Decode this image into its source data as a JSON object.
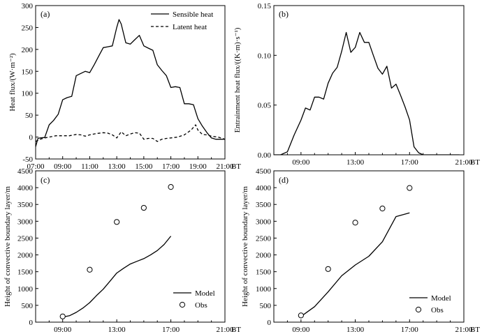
{
  "figure_unit": "BT",
  "chart_data": [
    {
      "panel": "(a)",
      "type": "line",
      "xlabel": "",
      "ylabel": "Heat flux/(W·m⁻²)",
      "xlim": [
        7,
        21
      ],
      "ylim": [
        -50,
        300
      ],
      "xticks": [
        "07:00",
        "09:00",
        "11:00",
        "13:00",
        "15:00",
        "17:00",
        "19:00",
        "21:00"
      ],
      "yticks": [
        "-50",
        "0",
        "50",
        "100",
        "150",
        "200",
        "250",
        "300"
      ],
      "legend_position": "top-right",
      "series": [
        {
          "name": "Sensible heat",
          "style": "solid",
          "x": [
            7.0,
            7.17,
            7.33,
            7.67,
            8.0,
            8.33,
            8.67,
            9.0,
            9.33,
            9.67,
            10.0,
            10.33,
            10.67,
            11.0,
            11.33,
            11.67,
            12.0,
            12.33,
            12.67,
            13.0,
            13.17,
            13.33,
            13.67,
            14.0,
            14.33,
            14.67,
            15.0,
            15.33,
            15.67,
            16.0,
            16.33,
            16.67,
            17.0,
            17.33,
            17.67,
            18.0,
            18.33,
            18.67,
            19.0,
            19.33,
            19.67,
            20.0,
            20.33,
            20.67,
            21.0
          ],
          "y": [
            -22,
            -3,
            -2,
            -1,
            28,
            38,
            52,
            85,
            90,
            93,
            140,
            145,
            150,
            147,
            165,
            185,
            204,
            206,
            208,
            250,
            268,
            258,
            215,
            212,
            222,
            232,
            208,
            203,
            198,
            165,
            152,
            140,
            113,
            115,
            113,
            76,
            76,
            74,
            42,
            25,
            10,
            -2,
            -5,
            -5,
            -5
          ]
        },
        {
          "name": "Latent heat",
          "style": "dashed",
          "x": [
            7.0,
            7.33,
            7.67,
            8.0,
            8.5,
            9.0,
            9.5,
            10.0,
            10.33,
            10.67,
            11.0,
            11.5,
            12.0,
            12.33,
            12.67,
            13.0,
            13.17,
            13.33,
            13.67,
            14.0,
            14.33,
            14.67,
            15.0,
            15.33,
            15.67,
            16.0,
            16.33,
            16.67,
            17.0,
            17.5,
            18.0,
            18.5,
            18.83,
            19.0,
            19.33,
            19.67,
            20.0,
            20.5,
            21.0
          ],
          "y": [
            -10,
            -5,
            -2,
            0,
            3,
            3,
            3,
            6,
            5,
            2,
            5,
            8,
            10,
            9,
            5,
            -2,
            5,
            12,
            3,
            7,
            10,
            9,
            -5,
            -3,
            -3,
            -10,
            -5,
            -3,
            -2,
            0,
            5,
            16,
            28,
            16,
            6,
            5,
            2,
            0,
            -5
          ]
        }
      ]
    },
    {
      "panel": "(b)",
      "type": "line",
      "xlabel": "",
      "ylabel": "Entrainment heat flux/((K·m)·s⁻¹)",
      "xlim": [
        7,
        21
      ],
      "ylim": [
        0,
        0.15
      ],
      "xticks": [
        "09:00",
        "13:00",
        "17:00",
        "21:00"
      ],
      "xtick_values": [
        9,
        13,
        17,
        21
      ],
      "yticks": [
        "0.00",
        "0.05",
        "0.10",
        "0.15"
      ],
      "series": [
        {
          "name": "Entrainment heat flux",
          "style": "solid",
          "x": [
            7.0,
            7.5,
            8.0,
            8.5,
            9.0,
            9.33,
            9.67,
            10.0,
            10.33,
            10.67,
            11.0,
            11.33,
            11.67,
            12.0,
            12.33,
            12.67,
            13.0,
            13.33,
            13.67,
            14.0,
            14.33,
            14.67,
            15.0,
            15.33,
            15.67,
            16.0,
            16.33,
            16.67,
            17.0,
            17.33,
            17.67,
            18.0,
            18.33,
            18.67,
            19.0,
            19.33,
            19.67,
            20.0,
            20.33,
            20.67
          ],
          "y": [
            0.0,
            0.0,
            0.003,
            0.02,
            0.035,
            0.047,
            0.045,
            0.058,
            0.058,
            0.056,
            0.072,
            0.082,
            0.088,
            0.104,
            0.123,
            0.103,
            0.108,
            0.123,
            0.113,
            0.113,
            0.1,
            0.087,
            0.081,
            0.089,
            0.067,
            0.071,
            0.06,
            0.048,
            0.035,
            0.008,
            0.002,
            0.0,
            0.0,
            0.0,
            0.0,
            0.0,
            0.0,
            0.0,
            0.0,
            0.0
          ]
        }
      ]
    },
    {
      "panel": "(c)",
      "type": "line",
      "xlabel": "",
      "ylabel": "Height of convective boundary layer/m",
      "xlim": [
        7,
        21
      ],
      "ylim": [
        0,
        4500
      ],
      "xticks": [
        "09:00",
        "13:00",
        "17:00",
        "21:00"
      ],
      "xtick_values": [
        9,
        13,
        17,
        21
      ],
      "yticks": [
        "0",
        "500",
        "1000",
        "1500",
        "2000",
        "2500",
        "3000",
        "3500",
        "4000",
        "4500"
      ],
      "legend_position": "bottom-right",
      "series": [
        {
          "name": "Model",
          "style": "solid",
          "x": [
            9.0,
            9.5,
            10.0,
            10.5,
            11.0,
            11.5,
            12.0,
            12.5,
            13.0,
            13.5,
            14.0,
            14.5,
            15.0,
            15.5,
            16.0,
            16.5,
            17.0
          ],
          "y": [
            150,
            190,
            290,
            420,
            580,
            790,
            980,
            1220,
            1460,
            1600,
            1730,
            1810,
            1890,
            2000,
            2130,
            2310,
            2560
          ]
        },
        {
          "name": "Obs",
          "style": "marker-circle",
          "x": [
            9.0,
            11.0,
            13.0,
            15.0,
            17.0
          ],
          "y": [
            170,
            1560,
            2980,
            3400,
            4020
          ]
        }
      ]
    },
    {
      "panel": "(d)",
      "type": "line",
      "xlabel": "",
      "ylabel": "Height of convective boundary layer/m",
      "xlim": [
        7,
        21
      ],
      "ylim": [
        0,
        4500
      ],
      "xticks": [
        "09:00",
        "13:00",
        "17:00",
        "21:00"
      ],
      "xtick_values": [
        9,
        13,
        17,
        21
      ],
      "yticks": [
        "0",
        "500",
        "1000",
        "1500",
        "2000",
        "2500",
        "3000",
        "3500",
        "4000",
        "4500"
      ],
      "legend_position": "bottom-right",
      "series": [
        {
          "name": "Model",
          "style": "solid",
          "x": [
            9.0,
            10.0,
            11.0,
            12.0,
            13.0,
            14.0,
            15.0,
            16.0,
            17.0
          ],
          "y": [
            170,
            460,
            900,
            1380,
            1700,
            1960,
            2390,
            3140,
            3250
          ]
        },
        {
          "name": "Obs",
          "style": "marker-circle",
          "x": [
            9.0,
            11.0,
            13.0,
            15.0,
            17.0
          ],
          "y": [
            200,
            1580,
            2960,
            3380,
            3990
          ]
        }
      ]
    }
  ]
}
